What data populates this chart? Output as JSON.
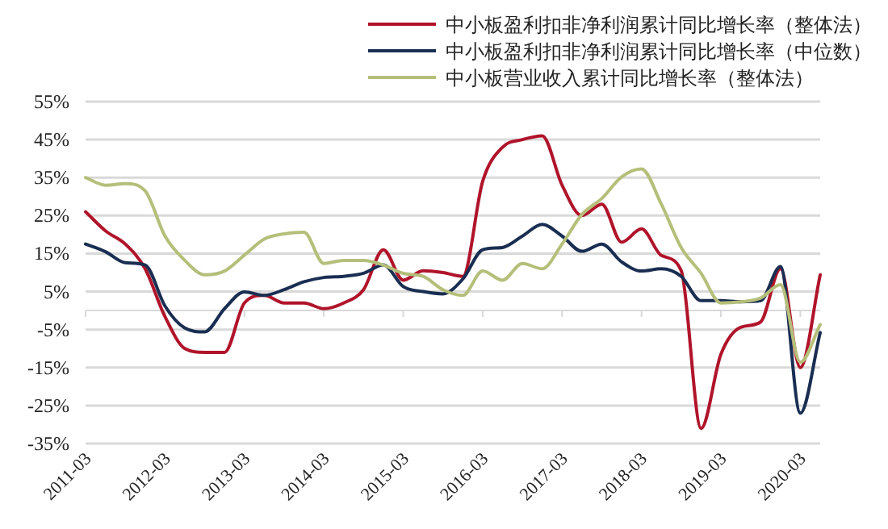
{
  "chart_data": {
    "type": "line",
    "x": [
      "2011-03",
      "2011-06",
      "2011-09",
      "2011-12",
      "2012-03",
      "2012-06",
      "2012-09",
      "2012-12",
      "2013-03",
      "2013-06",
      "2013-09",
      "2013-12",
      "2014-03",
      "2014-06",
      "2014-09",
      "2014-12",
      "2015-03",
      "2015-06",
      "2015-09",
      "2015-12",
      "2016-03",
      "2016-06",
      "2016-09",
      "2016-12",
      "2017-03",
      "2017-06",
      "2017-09",
      "2017-12",
      "2018-03",
      "2018-06",
      "2018-09",
      "2018-12",
      "2019-03",
      "2019-06",
      "2019-09",
      "2019-12",
      "2020-03",
      "2020-06"
    ],
    "series": [
      {
        "name": "中小板盈利扣非净利润累计同比增长率（整体法）",
        "color": "#b0142a",
        "values": [
          26,
          21,
          17.5,
          11,
          -1.6,
          -10,
          -11,
          -11,
          2,
          4,
          2,
          2,
          0.5,
          2,
          5.5,
          16,
          8,
          10.5,
          10,
          9,
          34,
          43,
          45,
          46,
          33,
          25,
          28,
          18,
          21.5,
          14.5,
          10.5,
          -31,
          -11.5,
          -4.4,
          -3,
          11,
          -15,
          9.4
        ]
      },
      {
        "name": "中小板盈利扣非净利润累计同比增长率（中位数）",
        "color": "#1a2e52",
        "values": [
          17.5,
          15.5,
          12.6,
          12,
          1.2,
          -4.6,
          -5.6,
          0.5,
          4.9,
          4,
          5.5,
          7.6,
          8.7,
          9,
          9.8,
          12,
          6.3,
          5,
          4.4,
          8.3,
          16,
          16.6,
          19.6,
          22.7,
          19.6,
          15.6,
          17.5,
          12.8,
          10.4,
          11,
          9,
          2.6,
          2.6,
          2.3,
          2.6,
          11.6,
          -27,
          -5.8
        ]
      },
      {
        "name": "中小板营业收入累计同比增长率（整体法）",
        "color": "#b5bf7a",
        "values": [
          35,
          33,
          33.4,
          31.5,
          19.6,
          13.2,
          9.4,
          10.4,
          14.6,
          18.8,
          20.2,
          20.6,
          12.4,
          13.2,
          13.2,
          12,
          9.8,
          9,
          5.5,
          4,
          10.4,
          8,
          12.4,
          11,
          17.5,
          25.3,
          29.5,
          35.2,
          37.3,
          28,
          16.6,
          9.8,
          2,
          2.3,
          3.3,
          6.8,
          -13.6,
          -3.7
        ]
      }
    ],
    "xlim": [
      "2011-03",
      "2020-06"
    ],
    "xticks": [
      "2011-03",
      "2012-03",
      "2013-03",
      "2014-03",
      "2015-03",
      "2016-03",
      "2017-03",
      "2018-03",
      "2019-03",
      "2020-03"
    ],
    "ylim": [
      -35,
      55
    ],
    "yticks": [
      {
        "value": 55,
        "label": "55%"
      },
      {
        "value": 45,
        "label": "45%"
      },
      {
        "value": 35,
        "label": "35%"
      },
      {
        "value": 25,
        "label": "25%"
      },
      {
        "value": 15,
        "label": "15%"
      },
      {
        "value": 5,
        "label": "5%"
      },
      {
        "value": -5,
        "label": "-5%"
      },
      {
        "value": -15,
        "label": "-15%"
      },
      {
        "value": -25,
        "label": "-25%"
      },
      {
        "value": -35,
        "label": "-35%"
      }
    ],
    "grid": "y",
    "legend": "top",
    "marker": "none",
    "line_style": "solid"
  }
}
